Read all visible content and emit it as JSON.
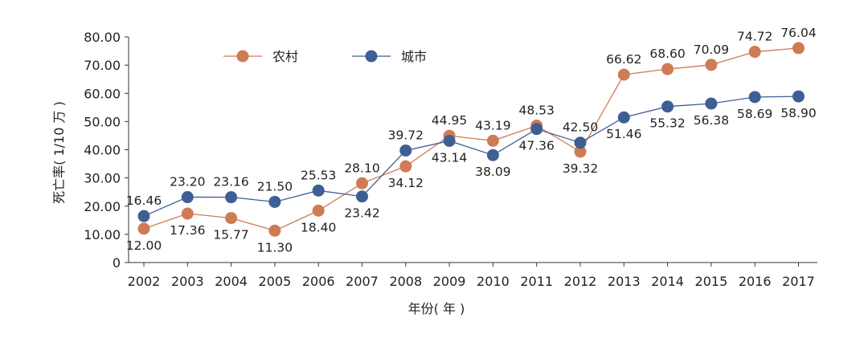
{
  "chart_data": {
    "type": "line",
    "title": "",
    "xlabel": "年份( 年 )",
    "ylabel": "死亡率( 1/10 万 )",
    "ylim": [
      0,
      80
    ],
    "yticks": [
      "0",
      "10.00",
      "20.00",
      "30.00",
      "40.00",
      "50.00",
      "60.00",
      "70.00",
      "80.00"
    ],
    "grid": false,
    "legend_position": "top-left",
    "categories": [
      "2002",
      "2003",
      "2004",
      "2005",
      "2006",
      "2007",
      "2008",
      "2009",
      "2010",
      "2011",
      "2012",
      "2013",
      "2014",
      "2015",
      "2016",
      "2017"
    ],
    "series": [
      {
        "name": "农村",
        "color": "#cf7b55",
        "values": [
          12.0,
          17.36,
          15.77,
          11.3,
          18.4,
          28.1,
          34.12,
          44.95,
          43.19,
          48.53,
          39.32,
          66.62,
          68.6,
          70.09,
          74.72,
          76.04
        ],
        "labels": [
          "12.00",
          "17.36",
          "15.77",
          "11.30",
          "18.40",
          "28.10",
          "34.12",
          "44.95",
          "43.19",
          "48.53",
          "39.32",
          "66.62",
          "68.60",
          "70.09",
          "74.72",
          "76.04"
        ],
        "label_side": [
          "below",
          "below",
          "below",
          "below",
          "below",
          "above",
          "below",
          "above",
          "above",
          "above",
          "below",
          "above",
          "above",
          "above",
          "above",
          "above"
        ]
      },
      {
        "name": "城市",
        "color": "#3e5f93",
        "values": [
          16.46,
          23.2,
          23.16,
          21.5,
          25.53,
          23.42,
          39.72,
          43.14,
          38.09,
          47.36,
          42.5,
          51.46,
          55.32,
          56.38,
          58.69,
          58.9
        ],
        "labels": [
          "16.46",
          "23.20",
          "23.16",
          "21.50",
          "25.53",
          "23.42",
          "39.72",
          "43.14",
          "38.09",
          "47.36",
          "42.50",
          "51.46",
          "55.32",
          "56.38",
          "58.69",
          "58.90"
        ],
        "label_side": [
          "above",
          "above",
          "above",
          "above",
          "above",
          "below",
          "above",
          "below",
          "below",
          "below",
          "above",
          "below",
          "below",
          "below",
          "below",
          "below"
        ]
      }
    ]
  }
}
